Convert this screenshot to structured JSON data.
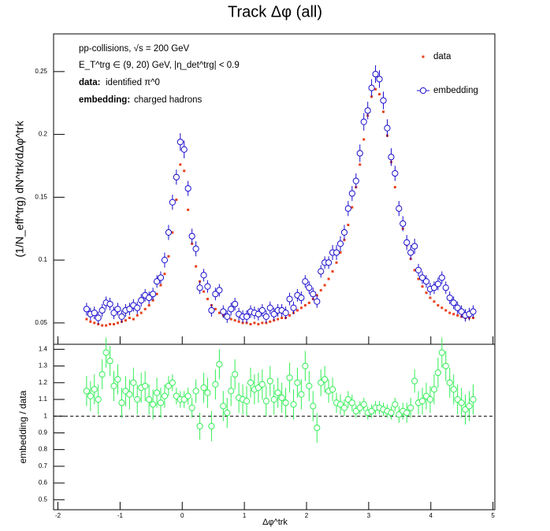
{
  "chart_data": [
    {
      "type": "scatter",
      "title": "Track Δφ (all)",
      "ylabel": "(1/N_eff^trg) dN^trk/dΔφ^trk",
      "annotations": [
        "pp-collisions, √s = 200 GeV",
        "E_T^trg ∈ (9, 20) GeV, |η_det^trg| < 0.9"
      ],
      "notes": [
        {
          "key": "data:",
          "text": "identified π^0"
        },
        {
          "key": "embedding:",
          "text": "charged hadrons"
        }
      ],
      "legend": "top right",
      "show_xtick_labels": false,
      "xlim": [
        -2.07,
        5.03
      ],
      "xticks": [
        -2,
        -1,
        0,
        1,
        2,
        3,
        4,
        5
      ],
      "ylim": [
        0.033,
        0.28
      ],
      "yticks": [
        0.05,
        0.1,
        0.15,
        0.2,
        0.25
      ],
      "x": [
        -1.539,
        -1.476,
        -1.414,
        -1.351,
        -1.288,
        -1.225,
        -1.162,
        -1.1,
        -1.037,
        -0.974,
        -0.911,
        -0.848,
        -0.785,
        -0.723,
        -0.66,
        -0.597,
        -0.534,
        -0.471,
        -0.408,
        -0.346,
        -0.283,
        -0.22,
        -0.157,
        -0.094,
        -0.031,
        0.031,
        0.094,
        0.157,
        0.22,
        0.283,
        0.346,
        0.408,
        0.471,
        0.534,
        0.597,
        0.66,
        0.723,
        0.785,
        0.848,
        0.911,
        0.974,
        1.037,
        1.1,
        1.162,
        1.225,
        1.288,
        1.351,
        1.414,
        1.476,
        1.539,
        1.602,
        1.665,
        1.728,
        1.791,
        1.853,
        1.916,
        1.979,
        2.042,
        2.105,
        2.168,
        2.231,
        2.293,
        2.356,
        2.419,
        2.482,
        2.545,
        2.608,
        2.67,
        2.733,
        2.796,
        2.859,
        2.922,
        2.985,
        3.047,
        3.11,
        3.173,
        3.236,
        3.299,
        3.362,
        3.424,
        3.487,
        3.55,
        3.613,
        3.676,
        3.739,
        3.801,
        3.864,
        3.927,
        3.99,
        4.053,
        4.116,
        4.178,
        4.241,
        4.304,
        4.367,
        4.43,
        4.493,
        4.555,
        4.618,
        4.681
      ],
      "series": [
        {
          "name": "data",
          "color": "#e8401c",
          "marker": "square",
          "values": [
            0.053,
            0.051,
            0.05,
            0.049,
            0.048,
            0.048,
            0.049,
            0.049,
            0.05,
            0.051,
            0.052,
            0.054,
            0.053,
            0.056,
            0.058,
            0.061,
            0.064,
            0.068,
            0.073,
            0.08,
            0.089,
            0.103,
            0.122,
            0.148,
            0.176,
            0.171,
            0.14,
            0.113,
            0.095,
            0.083,
            0.075,
            0.069,
            0.064,
            0.061,
            0.058,
            0.056,
            0.054,
            0.053,
            0.052,
            0.051,
            0.05,
            0.05,
            0.049,
            0.05,
            0.049,
            0.05,
            0.05,
            0.051,
            0.052,
            0.053,
            0.054,
            0.054,
            0.056,
            0.058,
            0.06,
            0.062,
            0.064,
            0.066,
            0.069,
            0.072,
            0.076,
            0.08,
            0.085,
            0.091,
            0.098,
            0.106,
            0.116,
            0.128,
            0.142,
            0.158,
            0.176,
            0.196,
            0.215,
            0.23,
            0.236,
            0.232,
            0.218,
            0.199,
            0.178,
            0.158,
            0.14,
            0.125,
            0.112,
            0.101,
            0.092,
            0.085,
            0.079,
            0.074,
            0.07,
            0.067,
            0.064,
            0.062,
            0.06,
            0.058,
            0.057,
            0.056,
            0.055,
            0.054,
            0.054,
            0.054
          ]
        },
        {
          "name": "embedding",
          "color": "#1a0dcc",
          "marker": "circle",
          "values": [
            0.061,
            0.057,
            0.058,
            0.054,
            0.06,
            0.066,
            0.065,
            0.058,
            0.061,
            0.055,
            0.06,
            0.061,
            0.064,
            0.062,
            0.068,
            0.072,
            0.07,
            0.073,
            0.083,
            0.086,
            0.1,
            0.122,
            0.146,
            0.166,
            0.194,
            0.188,
            0.157,
            0.119,
            0.109,
            0.078,
            0.088,
            0.079,
            0.06,
            0.073,
            0.076,
            0.059,
            0.055,
            0.061,
            0.065,
            0.057,
            0.055,
            0.055,
            0.059,
            0.058,
            0.057,
            0.06,
            0.055,
            0.062,
            0.057,
            0.06,
            0.06,
            0.058,
            0.069,
            0.062,
            0.072,
            0.07,
            0.083,
            0.078,
            0.073,
            0.067,
            0.091,
            0.098,
            0.098,
            0.106,
            0.106,
            0.113,
            0.122,
            0.141,
            0.153,
            0.163,
            0.185,
            0.21,
            0.219,
            0.237,
            0.248,
            0.244,
            0.227,
            0.205,
            0.182,
            0.169,
            0.141,
            0.129,
            0.114,
            0.106,
            0.111,
            0.092,
            0.086,
            0.083,
            0.077,
            0.078,
            0.081,
            0.086,
            0.078,
            0.07,
            0.066,
            0.062,
            0.059,
            0.056,
            0.057,
            0.059
          ],
          "errors": [
            0.005,
            0.005,
            0.005,
            0.005,
            0.005,
            0.005,
            0.005,
            0.005,
            0.005,
            0.005,
            0.005,
            0.005,
            0.005,
            0.005,
            0.005,
            0.005,
            0.005,
            0.005,
            0.005,
            0.005,
            0.006,
            0.006,
            0.006,
            0.006,
            0.007,
            0.007,
            0.006,
            0.006,
            0.006,
            0.005,
            0.005,
            0.005,
            0.005,
            0.005,
            0.005,
            0.005,
            0.005,
            0.005,
            0.005,
            0.005,
            0.005,
            0.005,
            0.005,
            0.005,
            0.005,
            0.005,
            0.005,
            0.005,
            0.005,
            0.005,
            0.005,
            0.005,
            0.005,
            0.005,
            0.005,
            0.005,
            0.005,
            0.005,
            0.005,
            0.005,
            0.005,
            0.005,
            0.005,
            0.006,
            0.006,
            0.006,
            0.006,
            0.006,
            0.006,
            0.006,
            0.007,
            0.007,
            0.007,
            0.007,
            0.007,
            0.007,
            0.007,
            0.007,
            0.007,
            0.006,
            0.006,
            0.006,
            0.006,
            0.006,
            0.006,
            0.005,
            0.005,
            0.005,
            0.005,
            0.005,
            0.005,
            0.005,
            0.005,
            0.005,
            0.005,
            0.005,
            0.005,
            0.005,
            0.005,
            0.005
          ]
        }
      ]
    },
    {
      "type": "scatter",
      "xlabel": "Δφ^trk",
      "ylabel": "embedding / data",
      "show_xtick_labels": true,
      "hline": 1,
      "xlim": [
        -2.07,
        5.03
      ],
      "xticks": [
        -2,
        -1,
        0,
        1,
        2,
        3,
        4,
        5
      ],
      "ylim": [
        0.44,
        1.43
      ],
      "yticks": [
        0.5,
        0.6,
        0.7,
        0.8,
        0.9,
        1,
        1.1,
        1.2,
        1.3,
        1.4
      ],
      "x": [
        -1.539,
        -1.476,
        -1.414,
        -1.351,
        -1.288,
        -1.225,
        -1.162,
        -1.1,
        -1.037,
        -0.974,
        -0.911,
        -0.848,
        -0.785,
        -0.723,
        -0.66,
        -0.597,
        -0.534,
        -0.471,
        -0.408,
        -0.346,
        -0.283,
        -0.22,
        -0.157,
        -0.094,
        -0.031,
        0.031,
        0.094,
        0.157,
        0.22,
        0.283,
        0.346,
        0.408,
        0.471,
        0.534,
        0.597,
        0.66,
        0.723,
        0.785,
        0.848,
        0.911,
        0.974,
        1.037,
        1.1,
        1.162,
        1.225,
        1.288,
        1.351,
        1.414,
        1.476,
        1.539,
        1.602,
        1.665,
        1.728,
        1.791,
        1.853,
        1.916,
        1.979,
        2.042,
        2.105,
        2.168,
        2.231,
        2.293,
        2.356,
        2.419,
        2.482,
        2.545,
        2.608,
        2.67,
        2.733,
        2.796,
        2.859,
        2.922,
        2.985,
        3.047,
        3.11,
        3.173,
        3.236,
        3.299,
        3.362,
        3.424,
        3.487,
        3.55,
        3.613,
        3.676,
        3.739,
        3.801,
        3.864,
        3.927,
        3.99,
        4.053,
        4.116,
        4.178,
        4.241,
        4.304,
        4.367,
        4.43,
        4.493,
        4.555,
        4.618,
        4.681
      ],
      "series": [
        {
          "color": "#33ee55",
          "marker": "circle",
          "values": [
            1.15,
            1.12,
            1.16,
            1.1,
            1.25,
            1.38,
            1.33,
            1.18,
            1.22,
            1.08,
            1.15,
            1.13,
            1.2,
            1.1,
            1.17,
            1.18,
            1.1,
            1.07,
            1.14,
            1.08,
            1.12,
            1.18,
            1.2,
            1.12,
            1.1,
            1.1,
            1.12,
            1.05,
            1.15,
            0.94,
            1.17,
            1.14,
            0.94,
            1.19,
            1.31,
            1.06,
            1.02,
            1.15,
            1.25,
            1.11,
            1.1,
            1.09,
            1.2,
            1.16,
            1.17,
            1.19,
            1.09,
            1.21,
            1.1,
            1.14,
            1.11,
            1.08,
            1.23,
            1.07,
            1.2,
            1.13,
            1.3,
            1.18,
            1.06,
            0.93,
            1.2,
            1.22,
            1.15,
            1.16,
            1.08,
            1.07,
            1.05,
            1.1,
            1.08,
            1.03,
            1.05,
            1.07,
            1.02,
            1.03,
            1.05,
            1.05,
            1.04,
            1.03,
            1.02,
            1.07,
            1.01,
            1.03,
            1.02,
            1.05,
            1.21,
            1.08,
            1.09,
            1.12,
            1.1,
            1.16,
            1.26,
            1.38,
            1.3,
            1.2,
            1.16,
            1.1,
            1.08,
            1.04,
            1.06,
            1.1
          ],
          "errors": [
            0.09,
            0.09,
            0.09,
            0.09,
            0.09,
            0.09,
            0.09,
            0.09,
            0.09,
            0.09,
            0.09,
            0.09,
            0.09,
            0.09,
            0.09,
            0.09,
            0.09,
            0.09,
            0.09,
            0.09,
            0.07,
            0.06,
            0.05,
            0.05,
            0.05,
            0.05,
            0.05,
            0.06,
            0.07,
            0.08,
            0.09,
            0.09,
            0.09,
            0.09,
            0.09,
            0.09,
            0.09,
            0.09,
            0.09,
            0.09,
            0.09,
            0.09,
            0.09,
            0.09,
            0.09,
            0.09,
            0.09,
            0.09,
            0.09,
            0.09,
            0.09,
            0.09,
            0.09,
            0.09,
            0.09,
            0.09,
            0.09,
            0.09,
            0.09,
            0.09,
            0.08,
            0.08,
            0.07,
            0.07,
            0.06,
            0.06,
            0.05,
            0.05,
            0.05,
            0.04,
            0.04,
            0.04,
            0.04,
            0.04,
            0.04,
            0.04,
            0.04,
            0.04,
            0.04,
            0.04,
            0.05,
            0.05,
            0.06,
            0.06,
            0.07,
            0.07,
            0.08,
            0.08,
            0.08,
            0.09,
            0.09,
            0.09,
            0.09,
            0.09,
            0.09,
            0.09,
            0.09,
            0.09,
            0.09,
            0.09
          ]
        }
      ]
    }
  ]
}
